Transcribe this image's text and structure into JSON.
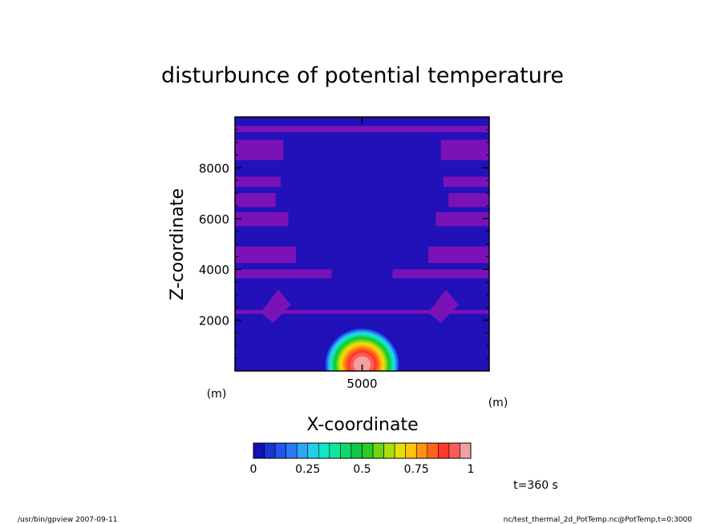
{
  "chart_data": {
    "type": "heatmap",
    "title": "disturbunce of potential temperature",
    "xlabel": "X-coordinate",
    "ylabel": "Z-coordinate",
    "x_unit": "(m)",
    "y_unit": "(m)",
    "xlim": [
      0,
      10000
    ],
    "ylim": [
      0,
      10000
    ],
    "x_ticks": [
      5000
    ],
    "y_ticks": [
      2000,
      4000,
      6000,
      8000
    ],
    "grid": false,
    "colorbar": {
      "min": 0,
      "max": 1,
      "levels": 20,
      "tick_values": [
        0,
        0.25,
        0.5,
        0.75,
        1
      ],
      "tick_labels": [
        "0",
        "0.25",
        "0.5",
        "0.75",
        "1"
      ],
      "colors": [
        "#1a1a8f",
        "#1111b4",
        "#1a33d6",
        "#2255ee",
        "#2a7bf5",
        "#2ea6f5",
        "#22cfe6",
        "#10e6c8",
        "#10e69a",
        "#10d66e",
        "#10c84a",
        "#2acc26",
        "#6ed610",
        "#aadc10",
        "#e6e00a",
        "#ffc20a",
        "#ff9410",
        "#ff641a",
        "#ff3a2a",
        "#ff5a5a",
        "#f4a0a0"
      ]
    },
    "field": {
      "background_color": "#2211b8",
      "stripe_color": "#7a12b8",
      "max_value": 1,
      "center_x": 5000,
      "center_z": 0,
      "radius_x": 1500,
      "radius_z": 1400
    },
    "annotations": [
      "t=360 s"
    ]
  },
  "footer": {
    "left": "/usr/bin/gpview   2007-09-11",
    "right": "nc/test_thermal_2d_PotTemp.nc@PotTemp,t=0:3000"
  }
}
